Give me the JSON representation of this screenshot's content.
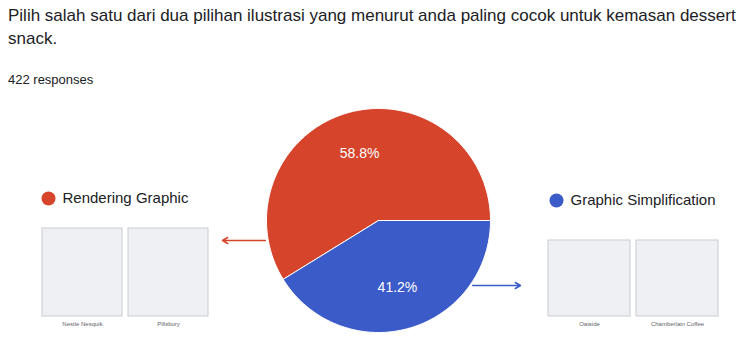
{
  "chart_data": {
    "type": "pie",
    "title": "Pilih salah satu dari dua pilihan ilustrasi yang menurut anda paling cocok untuk kemasan dessert snack.",
    "subtitle": "422 responses",
    "categories": [
      "Rendering Graphic",
      "Graphic Simplification"
    ],
    "values": [
      58.8,
      41.2
    ],
    "value_labels": [
      "58.8%",
      "41.2%"
    ],
    "colors": [
      "#d5442b",
      "#3b5bc8"
    ],
    "data_labels": true,
    "image_captions": [
      [
        "Nestle Nesquik",
        "Pillsbury"
      ],
      [
        "Oatside",
        "Chamberlain Coffee"
      ]
    ]
  }
}
